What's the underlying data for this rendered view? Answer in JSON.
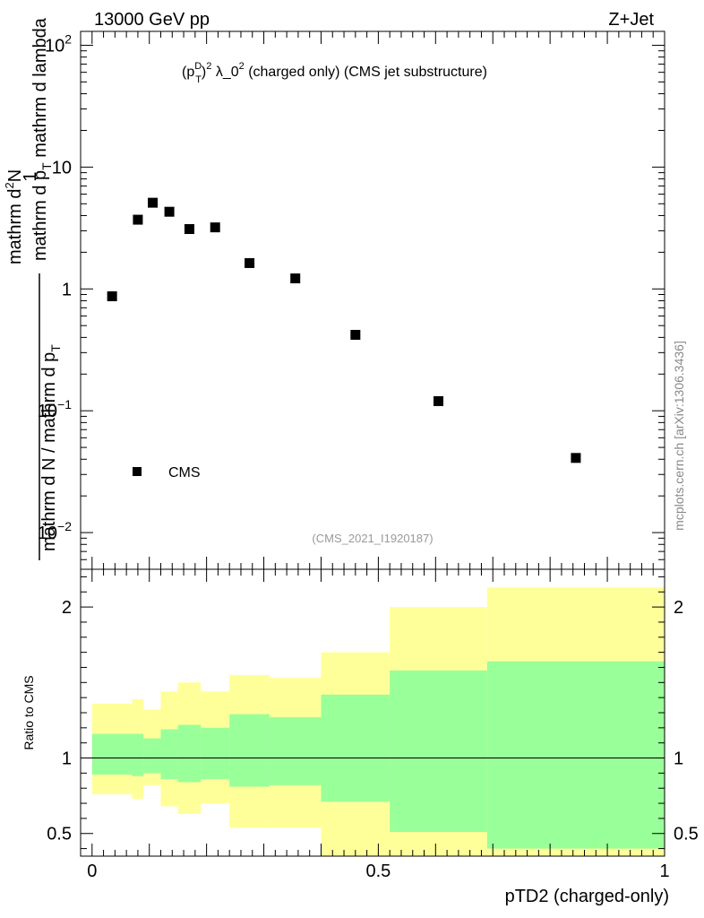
{
  "header": {
    "energy_label": "13000 GeV pp",
    "process_label": "Z+Jet"
  },
  "side_label": "mcplots.cern.ch [arXiv:1306.3436]",
  "colors": {
    "band_outer": "#ffff99",
    "band_inner": "#99ff99",
    "marker": "#000000"
  },
  "chart_data": [
    {
      "type": "scatter",
      "title": "(p_T^D)^2 λ_0^2 (charged only) (CMS jet substructure)",
      "title_parts": {
        "p": "(p",
        "sup_d": "D",
        "sub_t": "T",
        "close": ")",
        "sup_2": "2",
        "lambda": " λ_0",
        "sup_2b": "2",
        "rest": " (charged only) (CMS jet substructure)"
      },
      "ylabel": "1 / mathrm d N / mathrm d p_T  mathrm d²N / mathrm d p_T mathrm d lambda",
      "ylabel_parts": {
        "numerator_one": "1",
        "denominator_one_main": "mathrm d N / mathrm d p",
        "denominator_one_sub": "T",
        "numerator_two_pre": "mathrm d",
        "numerator_two_sup": "2",
        "numerator_two_post": "N",
        "denominator_two_main": "mathrm d p",
        "denominator_two_sub": "T",
        "denominator_two_post": " mathrm d lambda"
      },
      "yscale": "log",
      "ylim": [
        0.005,
        130
      ],
      "xlim": [
        -0.02,
        1.0
      ],
      "yticks": [
        {
          "value": 0.01,
          "base": "10",
          "exp": "−2"
        },
        {
          "value": 0.1,
          "base": "10",
          "exp": "−1"
        },
        {
          "value": 1,
          "base": "1",
          "exp": ""
        },
        {
          "value": 10,
          "base": "10",
          "exp": ""
        },
        {
          "value": 100,
          "base": "10",
          "exp": "2"
        }
      ],
      "series": [
        {
          "name": "CMS",
          "marker": "square",
          "x": [
            0.035,
            0.08,
            0.106,
            0.135,
            0.17,
            0.215,
            0.275,
            0.355,
            0.46,
            0.605,
            0.845
          ],
          "y": [
            0.87,
            3.7,
            5.1,
            4.3,
            3.1,
            3.2,
            1.63,
            1.22,
            0.42,
            0.12,
            0.041
          ]
        }
      ],
      "legend": {
        "position": "bottom-left"
      },
      "annotation": "(CMS_2021_I1920187)"
    },
    {
      "type": "area",
      "ylabel": "Ratio to CMS",
      "xlabel": "pTD2 (charged-only)",
      "ylim": [
        0.35,
        2.25
      ],
      "xlim": [
        -0.02,
        1.0
      ],
      "yticks": [
        0.5,
        1,
        2
      ],
      "ytick_labels": [
        "0.5",
        "1",
        "2"
      ],
      "xticks": [
        0,
        0.5,
        1
      ],
      "xtick_labels": [
        "0",
        "0.5",
        "1"
      ],
      "bin_edges": [
        0,
        0.07,
        0.09,
        0.12,
        0.15,
        0.19,
        0.24,
        0.31,
        0.4,
        0.52,
        0.69,
        1.0
      ],
      "outer_low": [
        0.76,
        0.73,
        0.82,
        0.68,
        0.63,
        0.7,
        0.54,
        0.54,
        0.2,
        0.2,
        0.2
      ],
      "outer_high": [
        1.36,
        1.39,
        1.32,
        1.44,
        1.5,
        1.44,
        1.55,
        1.53,
        1.7,
        2.0,
        2.13
      ],
      "inner_low": [
        0.89,
        0.88,
        0.9,
        0.86,
        0.84,
        0.86,
        0.81,
        0.82,
        0.71,
        0.51,
        0.4
      ],
      "inner_high": [
        1.16,
        1.16,
        1.13,
        1.19,
        1.22,
        1.2,
        1.29,
        1.27,
        1.42,
        1.58,
        1.64
      ],
      "reference_line": 1
    }
  ]
}
